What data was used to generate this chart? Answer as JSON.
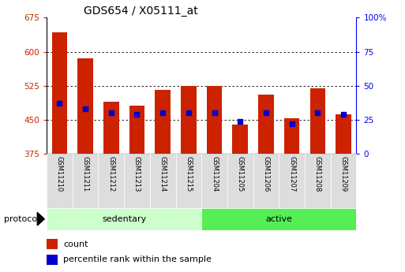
{
  "title": "GDS654 / X05111_at",
  "samples": [
    "GSM11210",
    "GSM11211",
    "GSM11212",
    "GSM11213",
    "GSM11214",
    "GSM11215",
    "GSM11204",
    "GSM11205",
    "GSM11206",
    "GSM11207",
    "GSM11208",
    "GSM11209"
  ],
  "count_values": [
    643,
    585,
    490,
    481,
    516,
    524,
    524,
    440,
    505,
    453,
    519,
    462
  ],
  "percentile_values": [
    37,
    33,
    30,
    29,
    30,
    30,
    30,
    24,
    30,
    22,
    30,
    29
  ],
  "group_sedentary": {
    "label": "sedentary",
    "start": 0,
    "end": 6,
    "color": "#ccffcc"
  },
  "group_active": {
    "label": "active",
    "start": 6,
    "end": 12,
    "color": "#55ee55"
  },
  "ymin": 375,
  "ymax": 675,
  "yticks": [
    375,
    450,
    525,
    600,
    675
  ],
  "right_yticks": [
    0,
    25,
    50,
    75,
    100
  ],
  "bar_color": "#cc2200",
  "dot_color": "#0000cc",
  "title_fontsize": 10,
  "tick_fontsize": 7.5,
  "label_fontsize": 8,
  "legend_count": "count",
  "legend_percentile": "percentile rank within the sample",
  "protocol_label": "protocol",
  "xtick_bg": "#dddddd",
  "grid_yticks": [
    450,
    525,
    600
  ]
}
